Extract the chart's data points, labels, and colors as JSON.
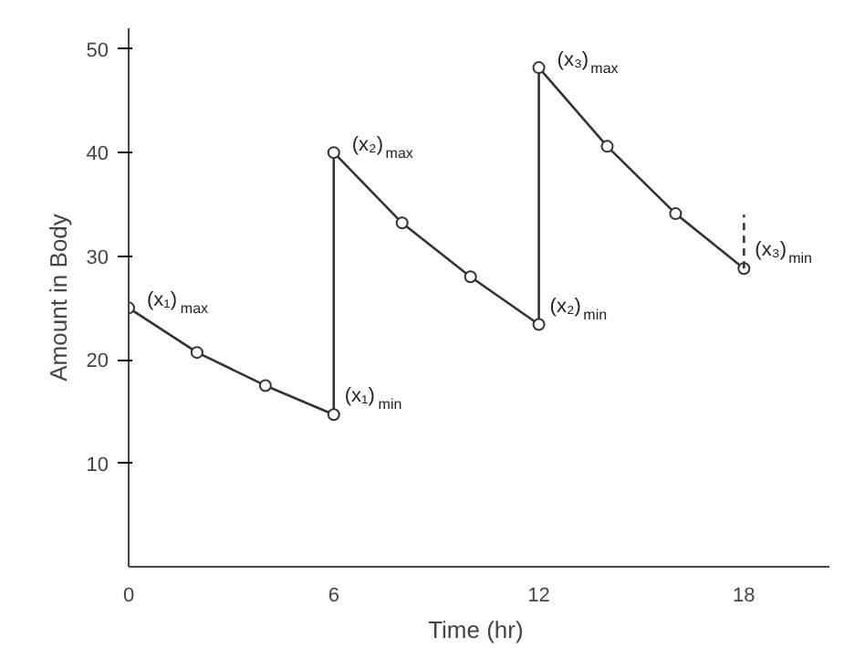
{
  "chart_data": {
    "type": "line",
    "xlabel": "Time  (hr)",
    "ylabel": "Amount in Body",
    "xlim": [
      0,
      20.5
    ],
    "ylim": [
      0,
      52
    ],
    "xticks": [
      0,
      6,
      12,
      18
    ],
    "yticks": [
      10,
      20,
      30,
      40,
      50
    ],
    "grid": false,
    "series": [
      {
        "color": "#333333",
        "marker": "circle",
        "line_style": "solid",
        "x": [
          0,
          2,
          4,
          6,
          6,
          8,
          10,
          12,
          12,
          14,
          16,
          18
        ],
        "values": [
          25,
          20.7,
          17.5,
          14.7,
          40,
          33.2,
          28,
          23.4,
          48.2,
          40.6,
          34.1,
          28.8
        ]
      },
      {
        "color": "#333333",
        "marker": "none",
        "line_style": "dashed",
        "x": [
          18,
          18
        ],
        "values": [
          28.8,
          34
        ]
      }
    ],
    "annotations": [
      {
        "text": "(x₁)$_{max}$",
        "x": 0,
        "y": 25
      },
      {
        "text": "(x₁)$_{min}$",
        "x": 6,
        "y": 14.7
      },
      {
        "text": "(x₂)$_{max}$",
        "x": 6,
        "y": 40
      },
      {
        "text": "(x₂)$_{min}$",
        "x": 12,
        "y": 23.4
      },
      {
        "text": "(x₃)$_{max}$",
        "x": 12,
        "y": 48.2
      },
      {
        "text": "(x₃)$_{min}$",
        "x": 18,
        "y": 28.8
      }
    ]
  }
}
